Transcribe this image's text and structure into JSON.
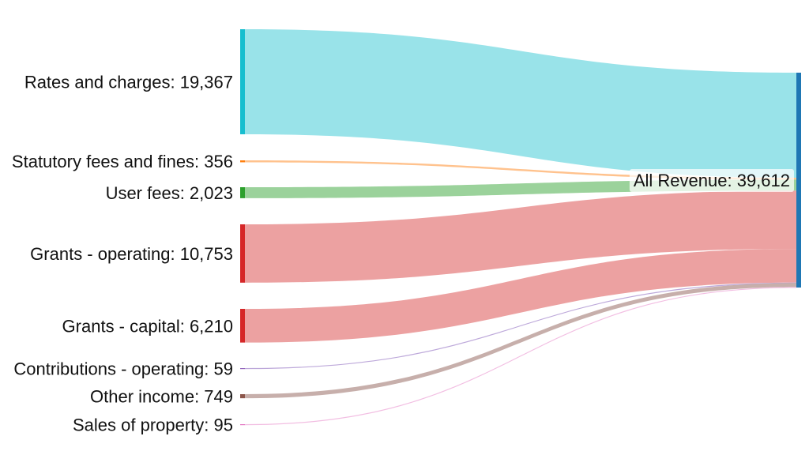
{
  "chart_data": {
    "type": "sankey",
    "target": {
      "name": "All Revenue",
      "value": 39612,
      "label": "All Revenue: 39,612",
      "color": "#1f77b4"
    },
    "sources": [
      {
        "name": "Rates and charges",
        "value": 19367,
        "label": "Rates and charges: 19,367",
        "color": "#17becf",
        "link_color": "#93e1e8"
      },
      {
        "name": "Statutory fees and fines",
        "value": 356,
        "label": "Statutory fees and fines: 356",
        "color": "#ff7f0e",
        "link_color": "#ffbf87"
      },
      {
        "name": "User fees",
        "value": 2023,
        "label": "User fees: 2,023",
        "color": "#2ca02c",
        "link_color": "#96d096"
      },
      {
        "name": "Grants - operating",
        "value": 10753,
        "label": "Grants - operating: 10,753",
        "color": "#d62728",
        "link_color": "#eb9c9c"
      },
      {
        "name": "Grants - capital",
        "value": 6210,
        "label": "Grants - capital: 6,210",
        "color": "#d62728",
        "link_color": "#eb9c9c"
      },
      {
        "name": "Contributions - operating",
        "value": 59,
        "label": "Contributions - operating: 59",
        "color": "#9467bd",
        "link_color": "#b9a3d8"
      },
      {
        "name": "Other income",
        "value": 749,
        "label": "Other income: 749",
        "color": "#8c564b",
        "link_color": "#c4aba6"
      },
      {
        "name": "Sales of property",
        "value": 95,
        "label": "Sales of property: 95",
        "color": "#e377c2",
        "link_color": "#f1bbe0"
      }
    ]
  }
}
